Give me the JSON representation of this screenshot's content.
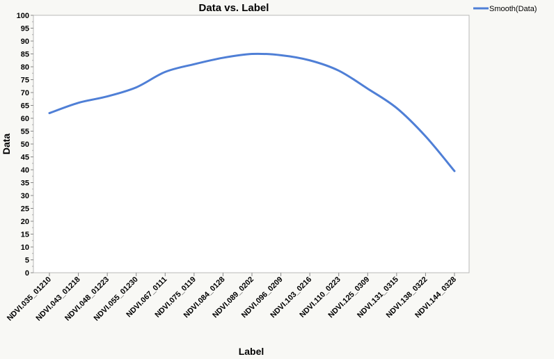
{
  "chart_data": {
    "type": "line",
    "title": "Data vs. Label",
    "xlabel": "Label",
    "ylabel": "Data",
    "ylim": [
      0,
      100
    ],
    "yticks": [
      0,
      5,
      10,
      15,
      20,
      25,
      30,
      35,
      40,
      45,
      50,
      55,
      60,
      65,
      70,
      75,
      80,
      85,
      90,
      95,
      100
    ],
    "categories": [
      "NDVI.035_01210",
      "NDVI.043_01218",
      "NDVI.048_01223",
      "NDVI.055_01230",
      "NDVI.067_0111",
      "NDVI.075_0119",
      "NDVI.084_0128",
      "NDVI.089_0202",
      "NDVI.096_0209",
      "NDVI.103_0216",
      "NDVI.110_0223",
      "NDVI.125_0309",
      "NDVI.131_0315",
      "NDVI.138_0322",
      "NDVI.144_0328"
    ],
    "series": [
      {
        "name": "Smooth(Data)",
        "color": "#4f7fd6",
        "values": [
          62,
          66,
          68.5,
          72,
          78,
          81,
          83.5,
          85,
          84.5,
          82.5,
          78.5,
          71.5,
          64,
          53,
          39.5
        ]
      }
    ],
    "grid": false,
    "legend_position": "top-right"
  }
}
